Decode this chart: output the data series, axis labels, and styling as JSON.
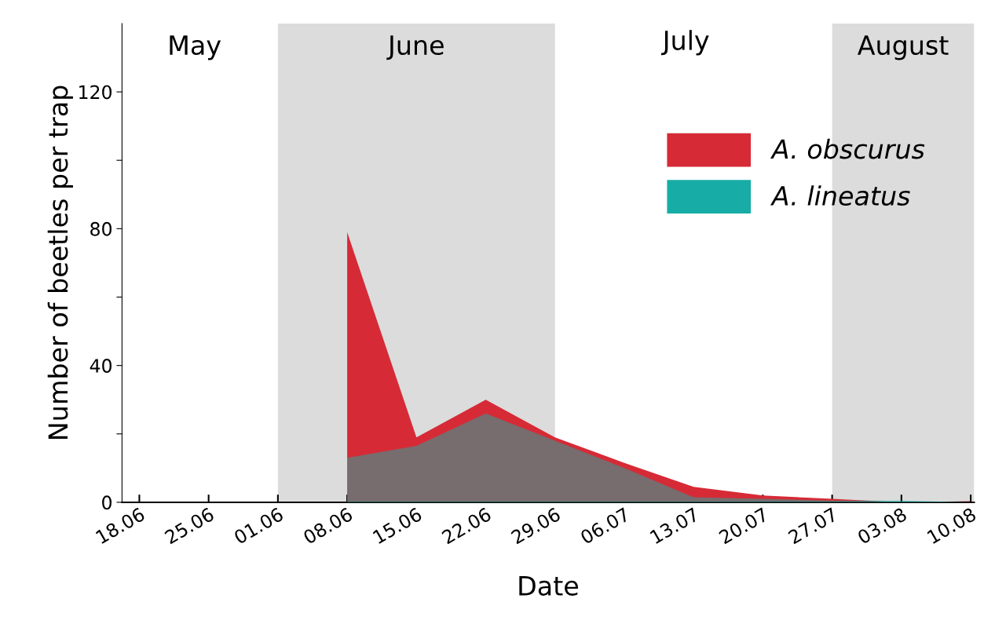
{
  "chart_data": {
    "type": "area",
    "xlabel": "Date",
    "ylabel": "Number of beetles per trap",
    "categories": [
      "18.06",
      "25.06",
      "01.06",
      "08.06",
      "15.06",
      "22.06",
      "29.06",
      "06.07",
      "13.07",
      "20.07",
      "27.07",
      "03.08",
      "10.08"
    ],
    "series": [
      {
        "name": "A. obscurus",
        "color": "#d62b36",
        "values": [
          null,
          null,
          null,
          79,
          19,
          30,
          19,
          11.5,
          4.5,
          2,
          1,
          0,
          0.3
        ]
      },
      {
        "name": "A. lineatus",
        "color": "#17ada6",
        "values": [
          null,
          null,
          null,
          13,
          16.5,
          26,
          18,
          10,
          1.5,
          1,
          0.5,
          0.5,
          0
        ]
      }
    ],
    "ylim": [
      0,
      140
    ],
    "yticks": [
      0,
      {
        "value": 20,
        "label": null
      },
      40,
      {
        "value": 60,
        "label": null
      },
      80,
      {
        "value": 100,
        "label": null
      },
      120
    ],
    "bands": [
      {
        "axis": "x",
        "from": "01.06",
        "to": "29.06",
        "label": "June",
        "color": "#dcdcdc"
      },
      {
        "axis": "x",
        "from": "27.07",
        "to": "10.08",
        "label": "August",
        "color": "#dcdcdc"
      }
    ],
    "annotations": [
      "May",
      "July"
    ],
    "legend": "top right",
    "grid": false
  }
}
